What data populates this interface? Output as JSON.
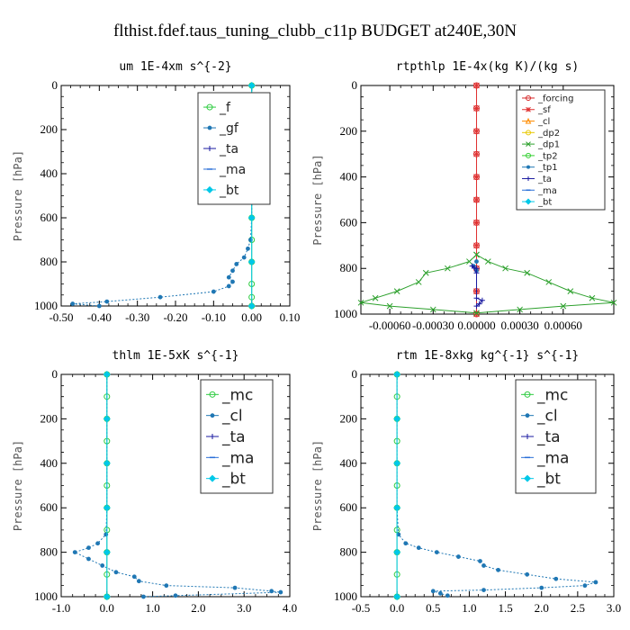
{
  "figure_title": "flthist.fdef.taus_tuning_clubb_c11p  BUDGET at240E,30N",
  "chart_data": [
    {
      "type": "line",
      "title": "um  1E-4xm s^{-2}",
      "ylabel": "Pressure [hPa]",
      "xlim": [
        -0.5,
        0.1
      ],
      "ylim": [
        1000,
        0
      ],
      "xticks": [
        -0.5,
        -0.4,
        -0.3,
        -0.2,
        -0.1,
        0.0,
        0.1
      ],
      "xticklabels": [
        "-0.50",
        "-0.40",
        "-0.30",
        "-0.20",
        "-0.10",
        "0.00",
        "0.10"
      ],
      "yticks": [
        0,
        200,
        400,
        600,
        800,
        1000
      ],
      "yticklabels": [
        "0",
        "200",
        "400",
        "600",
        "800",
        "1000"
      ],
      "legend_position": "top-right",
      "legend_fontsize": 14,
      "series": [
        {
          "name": "_f",
          "color": "#2ecc40",
          "marker": "circle",
          "points": [
            [
              0,
              0
            ],
            [
              0,
              100
            ],
            [
              0,
              200
            ],
            [
              0,
              300
            ],
            [
              0,
              400
            ],
            [
              0,
              500
            ],
            [
              0,
              600
            ],
            [
              0,
              700
            ],
            [
              0,
              800
            ],
            [
              0,
              900
            ],
            [
              0,
              960
            ],
            [
              0,
              1000
            ]
          ]
        },
        {
          "name": "_gf",
          "color": "#1f77b4",
          "marker": "dot",
          "points": [
            [
              0,
              0
            ],
            [
              0,
              200
            ],
            [
              0,
              400
            ],
            [
              0,
              500
            ],
            [
              0,
              600
            ],
            [
              -0.003,
              700
            ],
            [
              -0.01,
              740
            ],
            [
              -0.02,
              780
            ],
            [
              -0.04,
              810
            ],
            [
              -0.05,
              840
            ],
            [
              -0.06,
              870
            ],
            [
              -0.05,
              890
            ],
            [
              -0.06,
              910
            ],
            [
              -0.1,
              935
            ],
            [
              -0.24,
              960
            ],
            [
              -0.38,
              980
            ],
            [
              -0.47,
              990
            ],
            [
              -0.4,
              1000
            ]
          ]
        },
        {
          "name": "_ta",
          "color": "#1a1aa0",
          "marker": "plus",
          "points": []
        },
        {
          "name": "_ma",
          "color": "#2a6fd8",
          "marker": "dash",
          "points": []
        },
        {
          "name": "_bt",
          "color": "#00c8e8",
          "marker": "diamond",
          "points": [
            [
              0,
              0
            ],
            [
              0,
              200
            ],
            [
              0,
              400
            ],
            [
              0,
              600
            ],
            [
              0,
              800
            ],
            [
              0,
              1000
            ]
          ]
        }
      ]
    },
    {
      "type": "line",
      "title": "rtpthlp  1E-4x(kg K)/(kg s)",
      "ylabel": "Pressure [hPa]",
      "xlim": [
        -0.0008,
        0.00095
      ],
      "ylim": [
        1000,
        0
      ],
      "xticks": [
        -0.0006,
        -0.0003,
        0.0,
        0.0003,
        0.0006
      ],
      "xticklabels": [
        "-0.00060",
        "-0.00030",
        "0.00000",
        "0.00030",
        "0.00060"
      ],
      "yticks": [
        0,
        200,
        400,
        600,
        800,
        1000
      ],
      "yticklabels": [
        "0",
        "200",
        "400",
        "600",
        "800",
        "1000"
      ],
      "legend_position": "top-right",
      "legend_fontsize": 10,
      "series": [
        {
          "name": "_forcing",
          "color": "#d62728",
          "marker": "circle",
          "points": [
            [
              0,
              0
            ],
            [
              0,
              100
            ],
            [
              0,
              200
            ],
            [
              0,
              300
            ],
            [
              0,
              400
            ],
            [
              0,
              500
            ],
            [
              0,
              600
            ],
            [
              0,
              700
            ],
            [
              0,
              800
            ],
            [
              0,
              900
            ],
            [
              0,
              1000
            ]
          ]
        },
        {
          "name": "_sf",
          "color": "#e03030",
          "marker": "star",
          "points": [
            [
              0,
              0
            ],
            [
              0,
              100
            ],
            [
              0,
              200
            ],
            [
              0,
              300
            ],
            [
              0,
              400
            ],
            [
              0,
              500
            ],
            [
              0,
              600
            ],
            [
              0,
              700
            ],
            [
              0,
              800
            ],
            [
              0,
              900
            ],
            [
              0,
              1000
            ]
          ]
        },
        {
          "name": "_cl",
          "color": "#ff8c00",
          "marker": "triangle",
          "points": []
        },
        {
          "name": "_dp2",
          "color": "#e8c800",
          "marker": "circle",
          "points": []
        },
        {
          "name": "_dp1",
          "color": "#2ca02c",
          "marker": "cross",
          "points": [
            [
              0,
              740
            ],
            [
              -5e-05,
              770
            ],
            [
              -0.0002,
              800
            ],
            [
              -0.00035,
              820
            ],
            [
              -0.0004,
              860
            ],
            [
              -0.00055,
              900
            ],
            [
              -0.0007,
              930
            ],
            [
              -0.0008,
              950
            ],
            [
              -0.0006,
              965
            ],
            [
              -0.0003,
              980
            ],
            [
              0,
              995
            ],
            [
              0.0003,
              980
            ],
            [
              0.0006,
              965
            ],
            [
              0.00095,
              950
            ],
            [
              0.0008,
              930
            ],
            [
              0.00065,
              900
            ],
            [
              0.0005,
              860
            ],
            [
              0.00035,
              820
            ],
            [
              0.0002,
              800
            ],
            [
              8e-05,
              770
            ],
            [
              0,
              740
            ]
          ]
        },
        {
          "name": "_tp2",
          "color": "#32d030",
          "marker": "circle",
          "points": []
        },
        {
          "name": "_tp1",
          "color": "#1f77b4",
          "marker": "dot",
          "points": [
            [
              0,
              770
            ],
            [
              -2e-05,
              790
            ],
            [
              0,
              810
            ]
          ]
        },
        {
          "name": "_ta",
          "color": "#1a1aa0",
          "marker": "plus",
          "points": [
            [
              0,
              800
            ],
            [
              -3e-05,
              790
            ],
            [
              0,
              820
            ],
            [
              0,
              930
            ],
            [
              4e-05,
              940
            ],
            [
              2e-05,
              955
            ],
            [
              0,
              965
            ]
          ]
        },
        {
          "name": "_ma",
          "color": "#2a6fd8",
          "marker": "dash",
          "points": []
        },
        {
          "name": "_bt",
          "color": "#00c8e8",
          "marker": "diamond",
          "points": []
        }
      ]
    },
    {
      "type": "line",
      "title": "thlm  1E-5xK s^{-1}",
      "ylabel": "Pressure [hPa]",
      "xlim": [
        -1.0,
        4.0
      ],
      "ylim": [
        1000,
        0
      ],
      "xticks": [
        -1.0,
        0.0,
        1.0,
        2.0,
        3.0,
        4.0
      ],
      "xticklabels": [
        "-1.0",
        "0.0",
        "1.0",
        "2.0",
        "3.0",
        "4.0"
      ],
      "yticks": [
        0,
        200,
        400,
        600,
        800,
        1000
      ],
      "yticklabels": [
        "0",
        "200",
        "400",
        "600",
        "800",
        "1000"
      ],
      "legend_position": "top-right",
      "legend_fontsize": 17,
      "series": [
        {
          "name": "_mc",
          "color": "#2ecc40",
          "marker": "circle",
          "points": [
            [
              0,
              0
            ],
            [
              0,
              100
            ],
            [
              0,
              200
            ],
            [
              0,
              300
            ],
            [
              0,
              400
            ],
            [
              0,
              500
            ],
            [
              0,
              600
            ],
            [
              0,
              700
            ],
            [
              0,
              800
            ],
            [
              0,
              900
            ],
            [
              0,
              1000
            ]
          ]
        },
        {
          "name": "_cl",
          "color": "#1f77b4",
          "marker": "dot",
          "points": [
            [
              0,
              0
            ],
            [
              0,
              200
            ],
            [
              0,
              400
            ],
            [
              0,
              600
            ],
            [
              -0.02,
              720
            ],
            [
              -0.2,
              760
            ],
            [
              -0.4,
              780
            ],
            [
              -0.7,
              800
            ],
            [
              -0.4,
              830
            ],
            [
              -0.1,
              860
            ],
            [
              0.2,
              890
            ],
            [
              0.6,
              910
            ],
            [
              0.7,
              930
            ],
            [
              1.3,
              950
            ],
            [
              2.8,
              960
            ],
            [
              3.6,
              975
            ],
            [
              3.8,
              980
            ],
            [
              1.5,
              995
            ],
            [
              0.8,
              1000
            ]
          ]
        },
        {
          "name": "_ta",
          "color": "#1a1aa0",
          "marker": "plus",
          "points": []
        },
        {
          "name": "_ma",
          "color": "#2a6fd8",
          "marker": "dash",
          "points": []
        },
        {
          "name": "_bt",
          "color": "#00c8e8",
          "marker": "diamond",
          "points": [
            [
              0,
              0
            ],
            [
              0,
              200
            ],
            [
              0,
              400
            ],
            [
              0,
              600
            ],
            [
              0,
              800
            ],
            [
              0,
              1000
            ]
          ]
        }
      ]
    },
    {
      "type": "line",
      "title": "rtm  1E-8xkg kg^{-1} s^{-1}",
      "ylabel": "Pressure [hPa]",
      "xlim": [
        -0.5,
        3.0
      ],
      "ylim": [
        1000,
        0
      ],
      "xticks": [
        -0.5,
        0.0,
        0.5,
        1.0,
        1.5,
        2.0,
        2.5,
        3.0
      ],
      "xticklabels": [
        "-0.5",
        "0.0",
        "0.5",
        "1.0",
        "1.5",
        "2.0",
        "2.5",
        "3.0"
      ],
      "yticks": [
        0,
        200,
        400,
        600,
        800,
        1000
      ],
      "yticklabels": [
        "0",
        "200",
        "400",
        "600",
        "800",
        "1000"
      ],
      "legend_position": "top-right",
      "legend_fontsize": 17,
      "series": [
        {
          "name": "_mc",
          "color": "#2ecc40",
          "marker": "circle",
          "points": [
            [
              0,
              0
            ],
            [
              0,
              100
            ],
            [
              0,
              200
            ],
            [
              0,
              300
            ],
            [
              0,
              400
            ],
            [
              0,
              500
            ],
            [
              0,
              600
            ],
            [
              0,
              700
            ],
            [
              0,
              800
            ],
            [
              0,
              900
            ],
            [
              0,
              1000
            ]
          ]
        },
        {
          "name": "_cl",
          "color": "#1f77b4",
          "marker": "dot",
          "points": [
            [
              0,
              0
            ],
            [
              0,
              200
            ],
            [
              0,
              400
            ],
            [
              0,
              600
            ],
            [
              0.02,
              720
            ],
            [
              0.12,
              760
            ],
            [
              0.3,
              780
            ],
            [
              0.55,
              800
            ],
            [
              0.85,
              820
            ],
            [
              1.15,
              840
            ],
            [
              1.2,
              860
            ],
            [
              1.4,
              880
            ],
            [
              1.8,
              900
            ],
            [
              2.2,
              920
            ],
            [
              2.75,
              935
            ],
            [
              2.6,
              950
            ],
            [
              2.0,
              960
            ],
            [
              1.2,
              970
            ],
            [
              0.5,
              975
            ],
            [
              0.6,
              985
            ],
            [
              0.7,
              995
            ]
          ]
        },
        {
          "name": "_ta",
          "color": "#1a1aa0",
          "marker": "plus",
          "points": []
        },
        {
          "name": "_ma",
          "color": "#2a6fd8",
          "marker": "dash",
          "points": []
        },
        {
          "name": "_bt",
          "color": "#00c8e8",
          "marker": "diamond",
          "points": [
            [
              0,
              0
            ],
            [
              0,
              200
            ],
            [
              0,
              400
            ],
            [
              0,
              600
            ],
            [
              0,
              800
            ],
            [
              0,
              1000
            ]
          ]
        }
      ]
    }
  ]
}
